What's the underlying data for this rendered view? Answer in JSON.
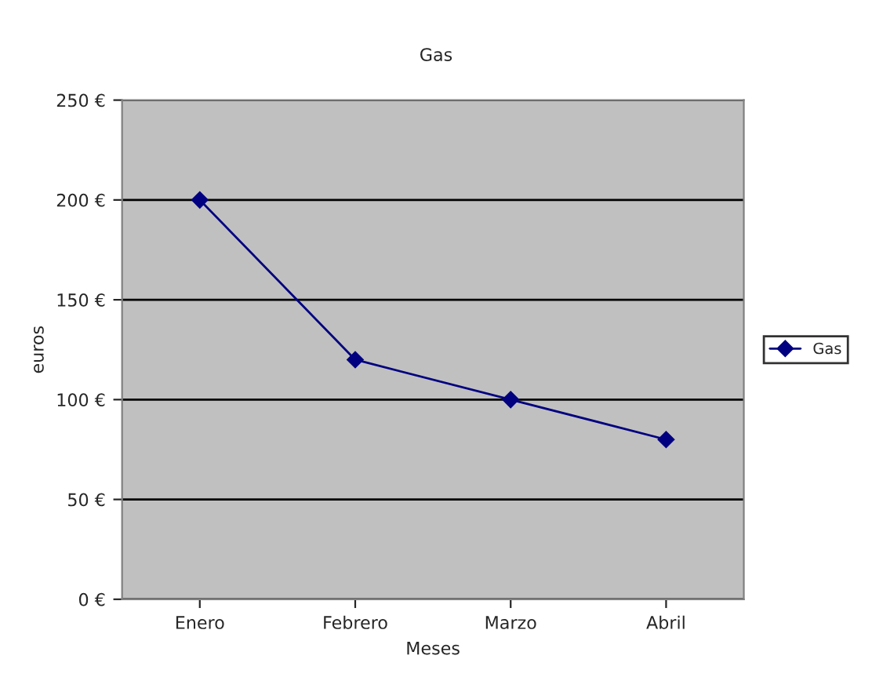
{
  "chart_data": {
    "type": "line",
    "title": "Gas",
    "xlabel": "Meses",
    "ylabel": "euros",
    "categories": [
      "Enero",
      "Febrero",
      "Marzo",
      "Abril"
    ],
    "series": [
      {
        "name": "Gas",
        "color": "#000080",
        "values": [
          200,
          120,
          100,
          80
        ]
      }
    ],
    "ylim": [
      0,
      250
    ],
    "yticks": [
      {
        "value": 0,
        "label": "0 €"
      },
      {
        "value": 50,
        "label": "50 €"
      },
      {
        "value": 100,
        "label": "100 €"
      },
      {
        "value": 150,
        "label": "150 €"
      },
      {
        "value": 200,
        "label": "200 €"
      },
      {
        "value": 250,
        "label": "250 €"
      }
    ],
    "grid": "y",
    "legend": "right",
    "marker": "diamond",
    "line_style": "solid"
  }
}
